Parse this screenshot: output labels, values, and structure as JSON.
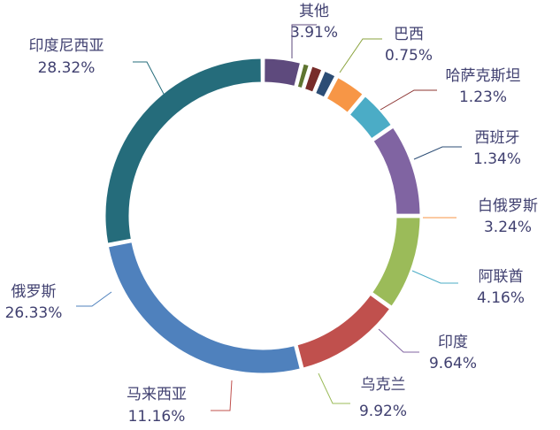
{
  "chart_data": {
    "type": "pie",
    "variant": "donut",
    "title": "",
    "legend": "none",
    "start": "top",
    "direction": "clockwise",
    "slices": [
      {
        "label": "其他",
        "value": 3.91,
        "display": "3.91%",
        "color": "#5e4a7d",
        "lead_color": "#5e4a7d"
      },
      {
        "label": "巴西",
        "value": 0.75,
        "display": "0.75%",
        "color": "#5f7530",
        "lead_color": "#8aa33c"
      },
      {
        "label": "哈萨克斯坦",
        "value": 1.23,
        "display": "1.23%",
        "color": "#772c2a",
        "lead_color": "#8c3432"
      },
      {
        "label": "西班牙",
        "value": 1.34,
        "display": "1.34%",
        "color": "#2c4d75",
        "lead_color": "#2c4d75"
      },
      {
        "label": "白俄罗斯",
        "value": 3.24,
        "display": "3.24%",
        "color": "#f79646",
        "lead_color": "#f79646"
      },
      {
        "label": "阿联酋",
        "value": 4.16,
        "display": "4.16%",
        "color": "#4bacc6",
        "lead_color": "#4bacc6"
      },
      {
        "label": "印度",
        "value": 9.64,
        "display": "9.64%",
        "color": "#8064a2",
        "lead_color": "#8064a2"
      },
      {
        "label": "乌克兰",
        "value": 9.92,
        "display": "9.92%",
        "color": "#9bbb59",
        "lead_color": "#9bbb59"
      },
      {
        "label": "马来西亚",
        "value": 11.16,
        "display": "11.16%",
        "color": "#c0504d",
        "lead_color": "#c0504d"
      },
      {
        "label": "俄罗斯",
        "value": 26.33,
        "display": "26.33%",
        "color": "#4f81bd",
        "lead_color": "#4f81bd"
      },
      {
        "label": "印度尼西亚",
        "value": 28.32,
        "display": "28.32%",
        "color": "#256c7b",
        "lead_color": "#256c7b"
      }
    ]
  }
}
